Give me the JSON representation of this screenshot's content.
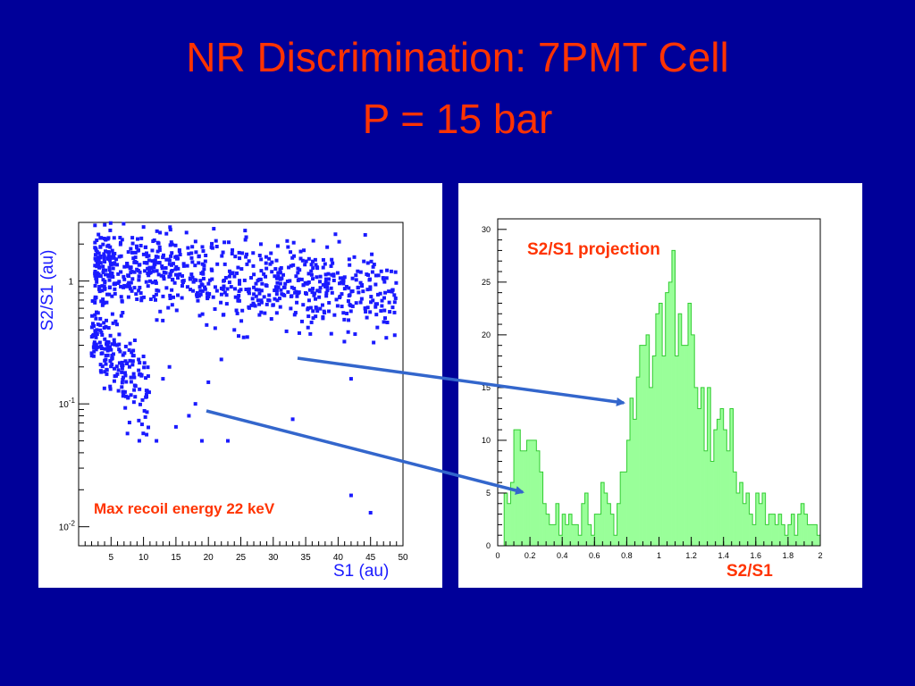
{
  "slide": {
    "title_line1": "NR Discrimination: 7PMT Cell",
    "title_line2": "P = 15 bar",
    "title_color": "#ff3300",
    "background_color": "#000099"
  },
  "left_panel": {
    "annotation": "Max recoil energy 22 keV",
    "annotation_color": "#ff3300",
    "marker_color": "#1a1aff"
  },
  "right_panel": {
    "annotation": "S2/S1 projection",
    "xlabel_outside": "S2/S1",
    "annotation_color": "#ff3300",
    "fill_color": "#99ff99",
    "edge_color": "#33cc33"
  },
  "arrow_color": "#3366cc",
  "chart_data": [
    {
      "type": "scatter",
      "xlabel": "S1 (au)",
      "ylabel": "S2/S1 (au)",
      "xlim": [
        0,
        50
      ],
      "ylim": [
        0.007,
        3
      ],
      "y_scale": "log",
      "x_ticks": [
        5,
        10,
        15,
        20,
        25,
        30,
        35,
        40,
        45,
        50
      ],
      "y_ticks": [
        {
          "value": 1,
          "label": "1"
        },
        {
          "value": 0.1,
          "label": "10",
          "exp": "-1"
        },
        {
          "value": 0.01,
          "label": "10",
          "exp": "-2"
        }
      ],
      "bands": [
        {
          "x_range": [
            2.5,
            49
          ],
          "center_start": 1.3,
          "center_end": 0.78,
          "spread": 0.16,
          "count": 820
        },
        {
          "x_range": [
            2,
            11
          ],
          "center_start": 0.38,
          "center_end": 0.12,
          "spread": 0.18,
          "count": 190
        }
      ],
      "points": [
        [
          4.5,
          2.2
        ],
        [
          2.5,
          1.15
        ],
        [
          3.2,
          1.1
        ],
        [
          3.0,
          0.55
        ],
        [
          2.8,
          0.4
        ],
        [
          2.2,
          0.45
        ],
        [
          12,
          0.05
        ],
        [
          15,
          0.065
        ],
        [
          17,
          0.08
        ],
        [
          18,
          0.1
        ],
        [
          20,
          0.15
        ],
        [
          22,
          0.23
        ],
        [
          24,
          0.4
        ],
        [
          19,
          0.05
        ],
        [
          23,
          0.05
        ],
        [
          26,
          0.35
        ],
        [
          33,
          0.075
        ],
        [
          42,
          0.16
        ],
        [
          42,
          0.018
        ],
        [
          45,
          0.013
        ],
        [
          14,
          0.2
        ],
        [
          13,
          0.16
        ]
      ]
    },
    {
      "type": "bar",
      "xlabel": "S2/S1",
      "ylabel": "",
      "xlim": [
        0,
        2
      ],
      "ylim": [
        0,
        31
      ],
      "x_ticks": [
        0,
        0.2,
        0.4,
        0.6,
        0.8,
        1,
        1.2,
        1.4,
        1.6,
        1.8,
        2
      ],
      "y_ticks": [
        0,
        5,
        10,
        15,
        20,
        25,
        30
      ],
      "bin_start": 0.04,
      "bin_width": 0.02,
      "values": [
        5,
        4,
        6,
        11,
        11,
        9,
        9,
        10,
        10,
        10,
        9,
        7,
        4,
        3,
        2,
        2,
        4,
        1,
        3,
        2,
        3,
        2,
        2,
        1,
        4,
        5,
        2,
        1,
        3,
        3,
        6,
        5,
        4,
        3,
        1,
        4,
        7,
        7,
        10,
        14,
        12,
        16,
        19,
        19,
        20,
        15,
        18,
        22,
        23,
        18,
        24,
        25,
        28,
        18,
        22,
        19,
        19,
        23,
        20,
        15,
        13,
        15,
        9,
        15,
        8,
        11,
        12,
        13,
        11,
        9,
        13,
        7,
        5,
        6,
        4,
        5,
        3,
        2,
        5,
        4,
        5,
        2,
        3,
        3,
        2,
        3,
        2,
        1,
        2,
        3,
        1,
        3,
        4,
        3,
        2,
        2,
        2,
        1
      ]
    }
  ]
}
